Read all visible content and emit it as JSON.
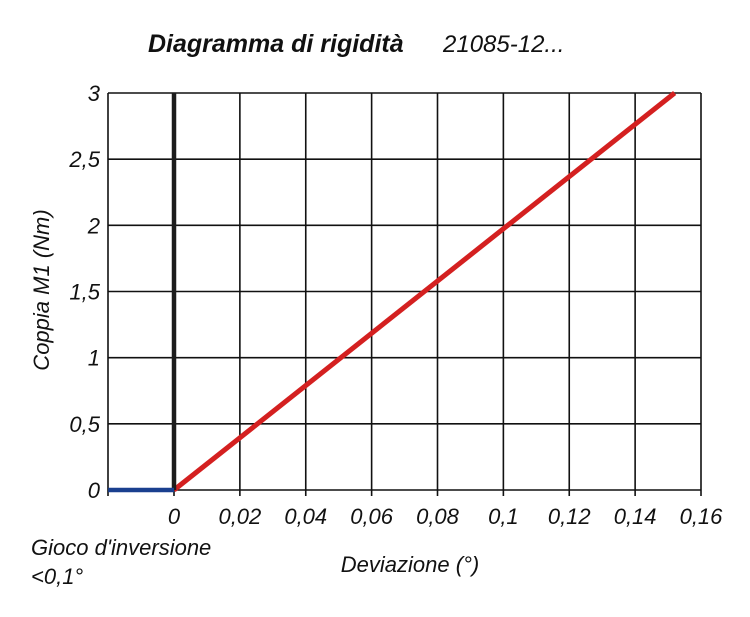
{
  "chart_data": {
    "type": "line",
    "title": "Diagramma di rigidità",
    "subtitle": "21085-12...",
    "xlabel": "Deviazione (°)",
    "ylabel": "Coppia M1 (Nm)",
    "xlim": [
      0,
      0.16
    ],
    "ylim": [
      0,
      3
    ],
    "x_ticks": [
      "0",
      "0,02",
      "0,04",
      "0,06",
      "0,08",
      "0,1",
      "0,12",
      "0,14",
      "0,16"
    ],
    "y_ticks": [
      "0",
      "0,5",
      "1",
      "1,5",
      "2",
      "2,5",
      "3"
    ],
    "grid": true,
    "annotation": {
      "line1": "Gioco d'inversione",
      "line2": "<0,1°"
    },
    "series": [
      {
        "color": "#d42020",
        "x": [
          0,
          0.152
        ],
        "y": [
          0,
          3
        ]
      },
      {
        "color": "#1c1c1c",
        "x": [
          0,
          0
        ],
        "y": [
          0,
          3
        ]
      },
      {
        "color": "#1a3f8f",
        "x": [
          -0.02,
          0
        ],
        "y": [
          0,
          0
        ]
      }
    ]
  }
}
